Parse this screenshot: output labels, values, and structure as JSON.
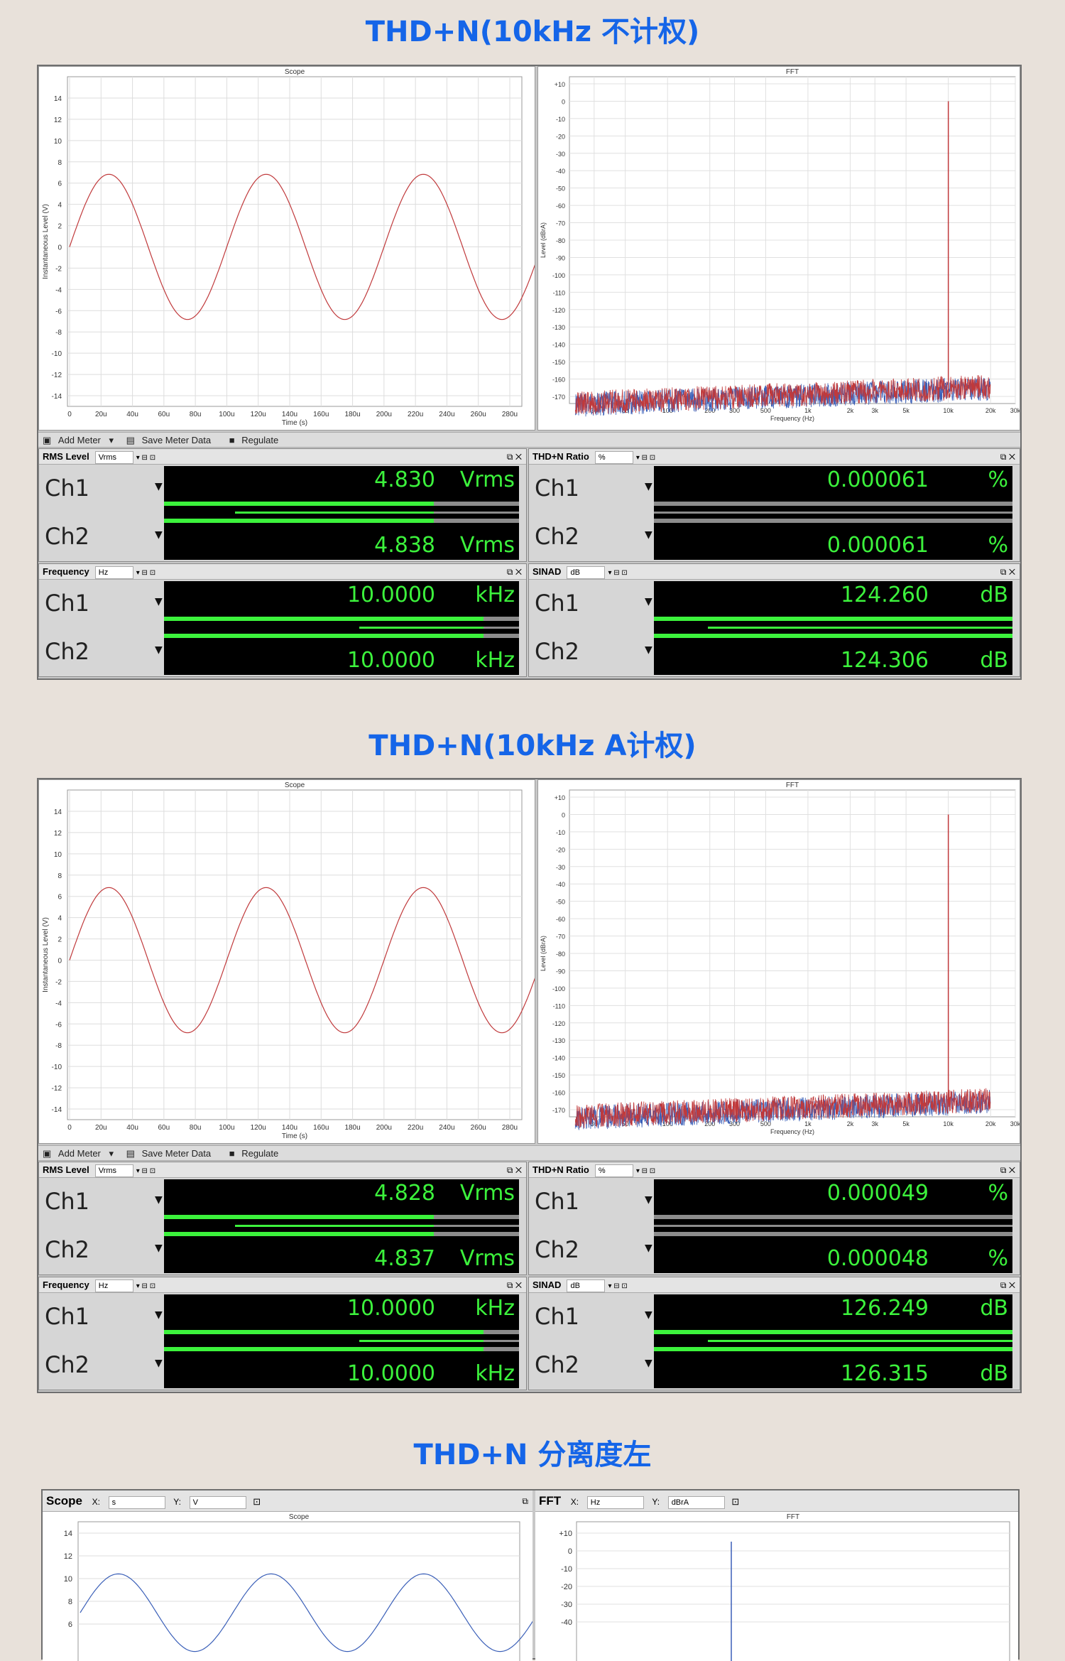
{
  "sections": [
    {
      "title": "THD+N(10kHz 不计权)",
      "scope_title": "Scope",
      "fft_title": "FFT",
      "scope_ylabel": "Instantaneous Level (V)",
      "scope_xlabel": "Time (s)",
      "fft_ylabel": "Level (dBrA)",
      "fft_xlabel": "Frequency (Hz)",
      "toolbar": {
        "add": "Add Meter",
        "save": "Save Meter Data",
        "regulate": "Regulate"
      },
      "meters": {
        "rms": {
          "name": "RMS Level",
          "unit": "Vrms",
          "ch1": "4.830",
          "ch2": "4.838",
          "u": "Vrms"
        },
        "thdn": {
          "name": "THD+N Ratio",
          "unit": "%",
          "ch1": "0.000061",
          "ch2": "0.000061",
          "u": "%"
        },
        "freq": {
          "name": "Frequency",
          "unit": "Hz",
          "ch1": "10.0000",
          "ch2": "10.0000",
          "u": "kHz"
        },
        "sinad": {
          "name": "SINAD",
          "unit": "dB",
          "ch1": "124.260",
          "ch2": "124.306",
          "u": "dB"
        }
      }
    },
    {
      "title": "THD+N(10kHz A计权)",
      "scope_title": "Scope",
      "fft_title": "FFT",
      "scope_ylabel": "Instantaneous Level (V)",
      "scope_xlabel": "Time (s)",
      "fft_ylabel": "Level (dBrA)",
      "fft_xlabel": "Frequency (Hz)",
      "toolbar": {
        "add": "Add Meter",
        "save": "Save Meter Data",
        "regulate": "Regulate"
      },
      "meters": {
        "rms": {
          "name": "RMS Level",
          "unit": "Vrms",
          "ch1": "4.828",
          "ch2": "4.837",
          "u": "Vrms"
        },
        "thdn": {
          "name": "THD+N Ratio",
          "unit": "%",
          "ch1": "0.000049",
          "ch2": "0.000048",
          "u": "%"
        },
        "freq": {
          "name": "Frequency",
          "unit": "Hz",
          "ch1": "10.0000",
          "ch2": "10.0000",
          "u": "kHz"
        },
        "sinad": {
          "name": "SINAD",
          "unit": "dB",
          "ch1": "126.249",
          "ch2": "126.315",
          "u": "dB"
        }
      }
    }
  ],
  "channels": {
    "ch1": "Ch1",
    "ch2": "Ch2"
  },
  "scope_yticks": [
    "14",
    "12",
    "10",
    "8",
    "6",
    "4",
    "2",
    "0",
    "-2",
    "-4",
    "-6",
    "-8",
    "-10",
    "-12",
    "-14"
  ],
  "scope_xticks": [
    "0",
    "20u",
    "40u",
    "60u",
    "80u",
    "100u",
    "120u",
    "140u",
    "160u",
    "180u",
    "200u",
    "220u",
    "240u",
    "260u",
    "280u"
  ],
  "fft_yticks": [
    "+10",
    "0",
    "-10",
    "-20",
    "-30",
    "-40",
    "-50",
    "-60",
    "-70",
    "-80",
    "-90",
    "-100",
    "-110",
    "-120",
    "-130",
    "-140",
    "-150",
    "-160",
    "-170"
  ],
  "fft_xticks": [
    "30",
    "50",
    "100",
    "200",
    "300",
    "500",
    "1k",
    "2k",
    "3k",
    "5k",
    "10k",
    "20k",
    "30k"
  ],
  "third": {
    "title": "THD+N 分离度左",
    "scope": {
      "name": "Scope",
      "x_label": "X:",
      "x_unit": "s",
      "y_label": "Y:",
      "y_unit": "V",
      "title": "Scope",
      "yticks": [
        "14",
        "12",
        "10",
        "8",
        "6"
      ]
    },
    "fft": {
      "name": "FFT",
      "x_label": "X:",
      "x_unit": "Hz",
      "y_label": "Y:",
      "y_unit": "dBrA",
      "title": "FFT",
      "yticks": [
        "+10",
        "0",
        "-10",
        "-20",
        "-30",
        "-40"
      ]
    }
  },
  "colors": {
    "accent": "#1565e8",
    "meter_green": "#3cf23c",
    "ch1_trace": "#c0393b",
    "ch2_trace": "#3a5fb8"
  },
  "icons": [
    "add-meter-icon",
    "save-meter-data-icon",
    "regulate-icon",
    "pop-out-icon",
    "close-icon",
    "dropdown-arrow-icon",
    "settings-icon"
  ]
}
